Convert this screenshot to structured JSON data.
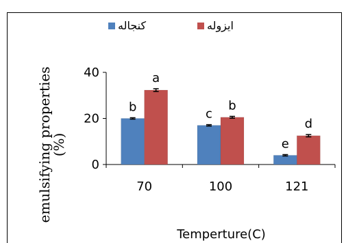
{
  "chart_data": {
    "type": "bar",
    "categories": [
      "70",
      "100",
      "121"
    ],
    "series": [
      {
        "name": "کنجاله",
        "color": "#4F81BD",
        "values": [
          20,
          17,
          4
        ],
        "errors": [
          0.3,
          0.3,
          0.3
        ],
        "letters": [
          "b",
          "c",
          "e"
        ]
      },
      {
        "name": "ایزوله",
        "color": "#C0504D",
        "values": [
          32.3,
          20.5,
          12.5
        ],
        "errors": [
          0.6,
          0.4,
          0.5
        ],
        "letters": [
          "a",
          "b",
          "d"
        ]
      }
    ],
    "y_ticks": [
      "0",
      "20",
      "40"
    ],
    "ylim": [
      0,
      40
    ],
    "xlabel": "Temperture(C)",
    "ylabel_line1": "emulsifying properties",
    "ylabel_line2": "(%)",
    "legend_position": "top"
  }
}
